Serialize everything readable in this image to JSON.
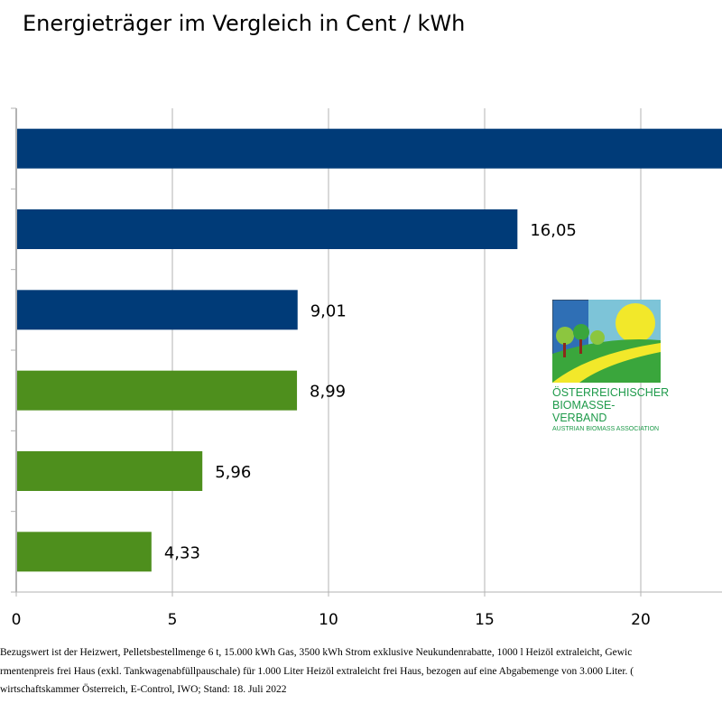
{
  "chart_data": {
    "type": "bar",
    "orientation": "horizontal",
    "title": "Energieträger im Vergleich in Cent / kWh",
    "categories": [
      "",
      "",
      "",
      "",
      "",
      ""
    ],
    "values": [
      null,
      16.05,
      9.01,
      8.99,
      5.96,
      4.33
    ],
    "data_labels": [
      "",
      "16,05",
      "9,01",
      "8,99",
      "5,96",
      "4,33"
    ],
    "bar_colors": [
      "#003b78",
      "#003b78",
      "#003b78",
      "#4e8f1d",
      "#4e8f1d",
      "#4e8f1d"
    ],
    "xlim": [
      0,
      22.6
    ],
    "xticks": [
      "0",
      "5",
      "10",
      "15",
      "20"
    ],
    "grid": true
  },
  "logo": {
    "line1": "ÖSTERREICHISCHER",
    "line2": "BIOMASSE-VERBAND",
    "line3": "AUSTRIAN BIOMASS ASSOCIATION"
  },
  "footnotes": [
    "Bezugswert ist der Heizwert, Pelletsbestellmenge 6 t, 15.000 kWh Gas, 3500 kWh Strom exklusive Neukundenrabatte, 1000 l Heizöl extraleicht, Gewic",
    "rmentenpreis frei Haus (exkl. Tankwagenabfüllpauschale) für 1.000 Liter Heizöl extraleicht frei Haus, bezogen auf eine Abgabemenge von 3.000 Liter. (",
    "wirtschaftskammer Österreich, E-Control, IWO; Stand: 18. Juli 2022"
  ]
}
